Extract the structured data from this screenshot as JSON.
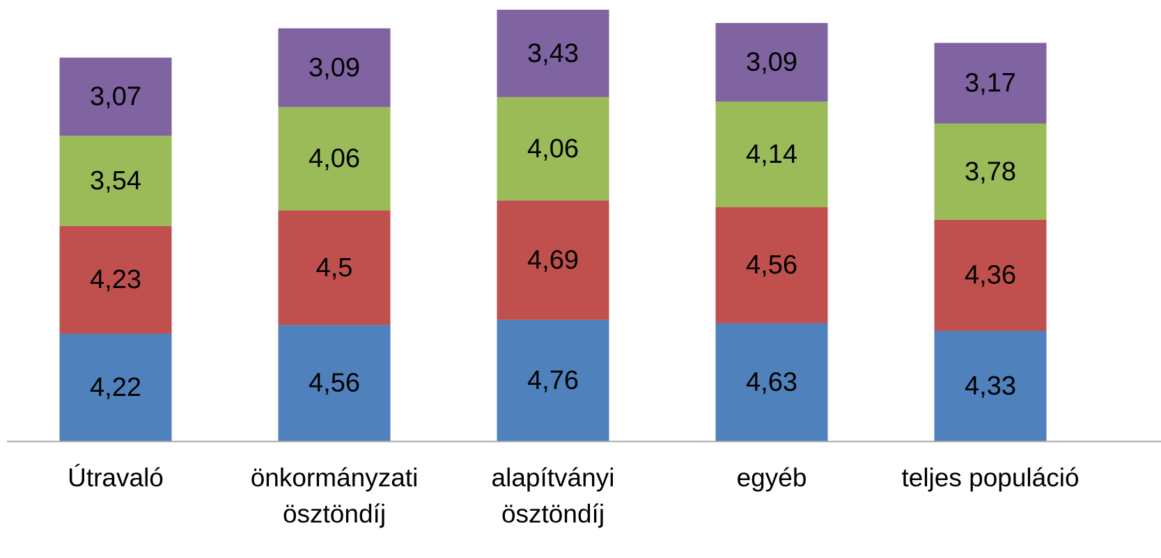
{
  "chart_data": {
    "type": "bar",
    "stacked": true,
    "categories": [
      [
        "Útravaló"
      ],
      [
        "önkormányzati",
        "ösztöndíj"
      ],
      [
        "alapítványi",
        "ösztöndíj"
      ],
      [
        "egyéb"
      ],
      [
        "teljes populáció"
      ]
    ],
    "series": [
      {
        "values": [
          4.22,
          4.56,
          4.76,
          4.63,
          4.33
        ],
        "labels": [
          "4,22",
          "4,56",
          "4,76",
          "4,63",
          "4,33"
        ],
        "color": "#4F81BD"
      },
      {
        "values": [
          4.23,
          4.5,
          4.69,
          4.56,
          4.36
        ],
        "labels": [
          "4,23",
          "4,5",
          "4,69",
          "4,56",
          "4,36"
        ],
        "color": "#C0504D"
      },
      {
        "values": [
          3.54,
          4.06,
          4.06,
          4.14,
          3.78
        ],
        "labels": [
          "3,54",
          "4,06",
          "4,06",
          "4,14",
          "3,78"
        ],
        "color": "#9BBB59"
      },
      {
        "values": [
          3.07,
          3.09,
          3.43,
          3.09,
          3.17
        ],
        "labels": [
          "3,07",
          "3,09",
          "3,43",
          "3,09",
          "3,17"
        ],
        "color": "#8064A2"
      }
    ],
    "data_labels": true,
    "grid": false,
    "legend": "none",
    "axis_line_color": "#A6A6A6"
  }
}
